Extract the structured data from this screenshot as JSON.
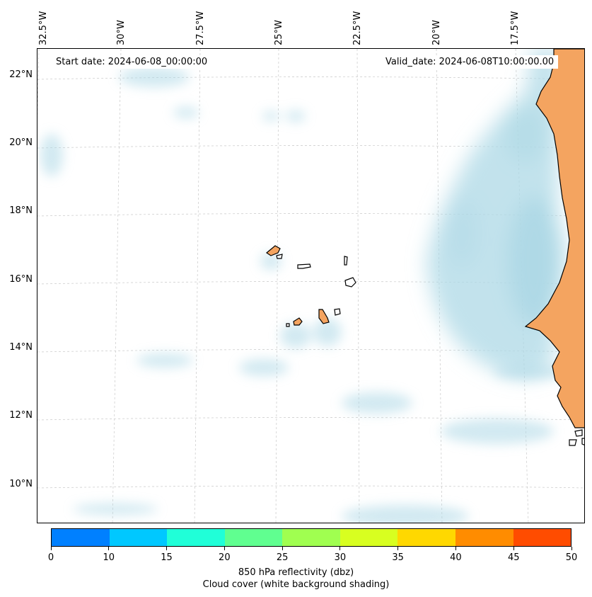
{
  "map": {
    "start_date": "Start date: 2024-06-08_00:00:00",
    "valid_date": "Valid_date: 2024-06-08T10:00:00.00",
    "longitude_labels": [
      "32.5°W",
      "30°W",
      "27.5°W",
      "25°W",
      "22.5°W",
      "20°W",
      "17.5°W"
    ],
    "latitude_labels": [
      "22°N",
      "20°N",
      "18°N",
      "16°N",
      "14°N",
      "12°N",
      "10°N"
    ],
    "land_color": "#f4a460",
    "cloud_color": "#add8e6"
  },
  "colorbar": {
    "ticks": [
      "0",
      "10",
      "15",
      "20",
      "25",
      "30",
      "35",
      "40",
      "45",
      "50"
    ],
    "colors": [
      "#0080ff",
      "#00c8ff",
      "#20ffd8",
      "#60ff90",
      "#a0ff50",
      "#d8ff20",
      "#ffd800",
      "#ff8c00",
      "#ff4c00"
    ],
    "title_line1": "850 hPa reflectivity (dbz)",
    "title_line2": "Cloud cover (white background shading)"
  }
}
